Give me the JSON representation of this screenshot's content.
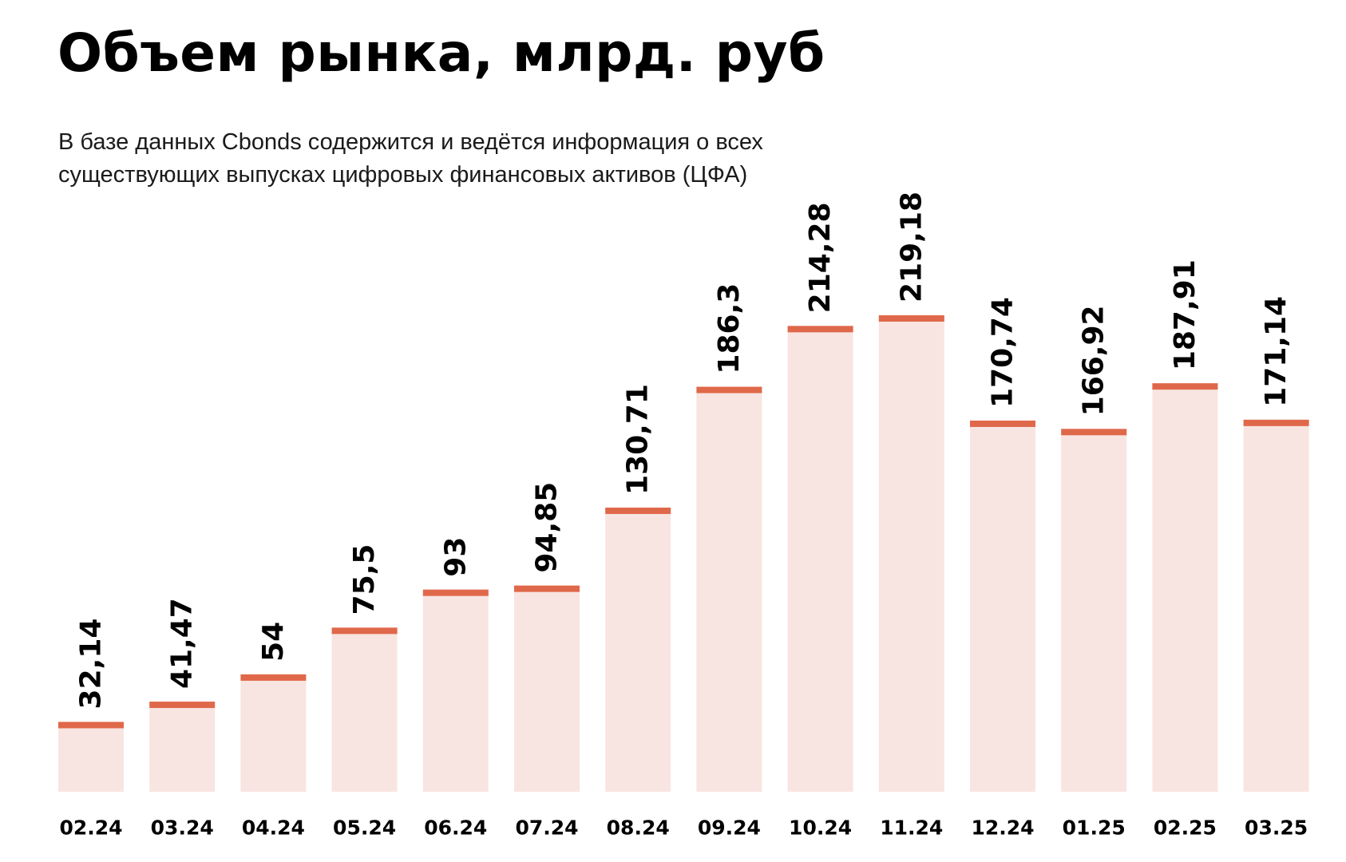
{
  "header": {
    "title": "Объем рынка, млрд. руб",
    "subtitle": "В базе данных Cbonds содержится и ведётся информация о всех существующих выпусках цифровых финансовых активов (ЦФА)"
  },
  "colors": {
    "bar_fill": "#f8e5e1",
    "bar_cap": "#e0684a",
    "text": "#000000"
  },
  "chart_data": {
    "type": "bar",
    "title": "Объем рынка, млрд. руб",
    "subtitle": "В базе данных Cbonds содержится и ведётся информация о всех существующих выпусках цифровых финансовых активов (ЦФА)",
    "xlabel": "",
    "ylabel": "",
    "categories": [
      "02.24",
      "03.24",
      "04.24",
      "05.24",
      "06.24",
      "07.24",
      "08.24",
      "09.24",
      "10.24",
      "11.24",
      "12.24",
      "01.25",
      "02.25",
      "03.25"
    ],
    "values": [
      32.14,
      41.47,
      54,
      75.5,
      93,
      94.85,
      130.71,
      186.3,
      214.28,
      219.18,
      170.74,
      166.92,
      187.91,
      171.14
    ],
    "value_labels": [
      "32,14",
      "41,47",
      "54",
      "75,5",
      "93",
      "94,85",
      "130,71",
      "186,3",
      "214,28",
      "219,18",
      "170,74",
      "166,92",
      "187,91",
      "171,14"
    ],
    "ylim": [
      0,
      219.18
    ],
    "grid": false,
    "legend": "none"
  }
}
